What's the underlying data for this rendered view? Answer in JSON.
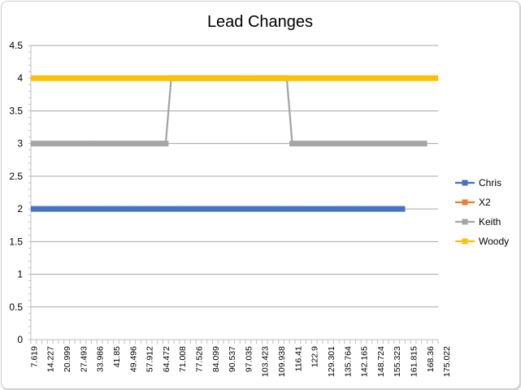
{
  "chart_data": {
    "type": "line",
    "title": "Lead Changes",
    "xlabel": "",
    "ylabel": "",
    "ylim": [
      0,
      4.5
    ],
    "yticks": [
      "0",
      "0.5",
      "1",
      "1.5",
      "2",
      "2.5",
      "3",
      "3.5",
      "4",
      "4.5"
    ],
    "ytick_values": [
      0,
      0.5,
      1,
      1.5,
      2,
      2.5,
      3,
      3.5,
      4,
      4.5
    ],
    "x_tick_labels": [
      "7.619",
      "14.227",
      "20.999",
      "27.493",
      "33.986",
      "41.85",
      "49.496",
      "57.912",
      "64.472",
      "71.008",
      "77.526",
      "84.099",
      "90.537",
      "97.035",
      "103.423",
      "109.938",
      "116.41",
      "122.9",
      "129.301",
      "135.764",
      "142.165",
      "148.724",
      "155.323",
      "161.815",
      "168.36",
      "175.022"
    ],
    "category_count": 74,
    "label_every": 3,
    "grid": true,
    "legend_position": "right",
    "series": [
      {
        "name": "Chris",
        "color": "#4472c4",
        "values": [
          2,
          2,
          2,
          2,
          2,
          2,
          2,
          2,
          2,
          2,
          2,
          2,
          2,
          2,
          2,
          2,
          2,
          2,
          2,
          2,
          2,
          2,
          2,
          2,
          2,
          2,
          2,
          2,
          2,
          2,
          2,
          2,
          2,
          2,
          2,
          2,
          2,
          2,
          2,
          2,
          2,
          2,
          2,
          2,
          2,
          2,
          2,
          2,
          2,
          2,
          2,
          2,
          2,
          2,
          2,
          2,
          2,
          2,
          2,
          2,
          2,
          2,
          2,
          2,
          2,
          2,
          2,
          2,
          null,
          null,
          null,
          null,
          null,
          null
        ]
      },
      {
        "name": "X2",
        "color": "#ed7d31",
        "values": []
      },
      {
        "name": "Keith",
        "color": "#a5a5a5",
        "values": [
          3,
          3,
          3,
          3,
          3,
          3,
          3,
          3,
          3,
          3,
          3,
          3,
          3,
          3,
          3,
          3,
          3,
          3,
          3,
          3,
          3,
          3,
          3,
          3,
          3,
          4,
          4,
          4,
          4,
          4,
          4,
          4,
          4,
          4,
          4,
          4,
          4,
          4,
          4,
          4,
          4,
          4,
          4,
          4,
          4,
          4,
          4,
          3,
          3,
          3,
          3,
          3,
          3,
          3,
          3,
          3,
          3,
          3,
          3,
          3,
          3,
          3,
          3,
          3,
          3,
          3,
          3,
          3,
          3,
          3,
          3,
          3,
          null,
          null
        ]
      },
      {
        "name": "Woody",
        "color": "#ffc000",
        "values": [
          4,
          4,
          4,
          4,
          4,
          4,
          4,
          4,
          4,
          4,
          4,
          4,
          4,
          4,
          4,
          4,
          4,
          4,
          4,
          4,
          4,
          4,
          4,
          4,
          4,
          4,
          4,
          4,
          4,
          4,
          4,
          4,
          4,
          4,
          4,
          4,
          4,
          4,
          4,
          4,
          4,
          4,
          4,
          4,
          4,
          4,
          4,
          4,
          4,
          4,
          4,
          4,
          4,
          4,
          4,
          4,
          4,
          4,
          4,
          4,
          4,
          4,
          4,
          4,
          4,
          4,
          4,
          4,
          4,
          4,
          4,
          4,
          4,
          4
        ]
      }
    ]
  }
}
